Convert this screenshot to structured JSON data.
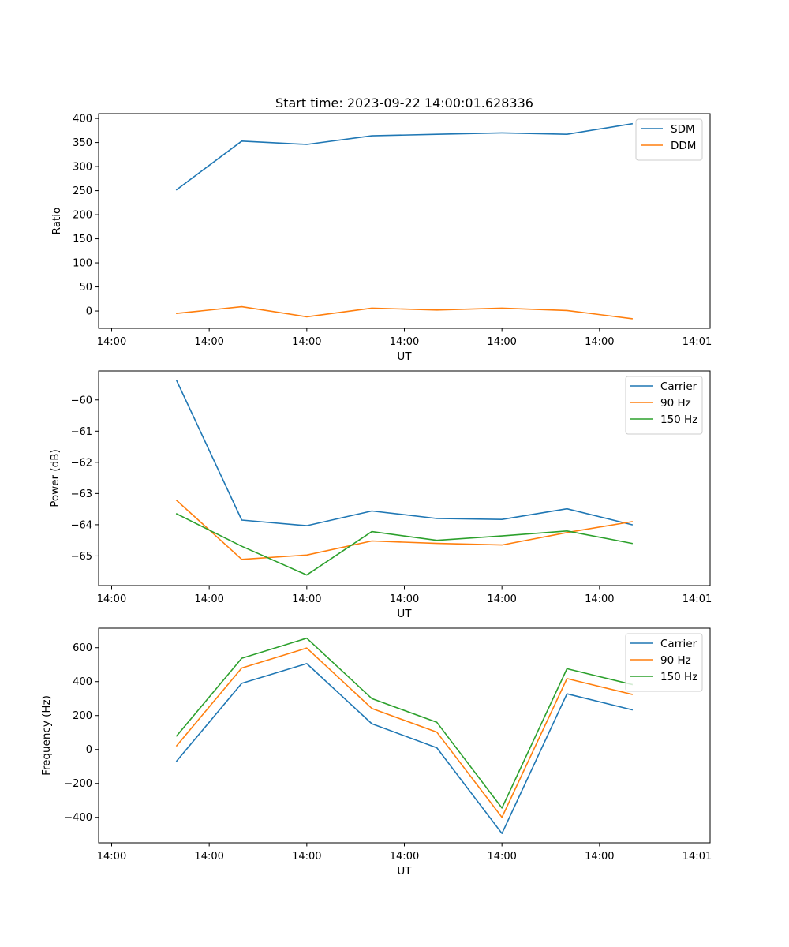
{
  "chart_data": [
    {
      "type": "line",
      "title": "Start time: 2023-09-22 14:00:01.628336",
      "xlabel": "UT",
      "ylabel": "Ratio",
      "x": [
        0.5,
        1.0,
        1.5,
        2.0,
        2.5,
        3.0,
        3.5,
        4.0
      ],
      "xlim": [
        -0.1,
        4.6
      ],
      "xticks": [
        0,
        0.75,
        1.5,
        2.25,
        3.0,
        3.75,
        4.5
      ],
      "xtick_labels": [
        "14:00",
        "14:00",
        "14:00",
        "14:00",
        "14:00",
        "14:00",
        "14:01"
      ],
      "ylim": [
        -36,
        410
      ],
      "yticks": [
        0,
        50,
        100,
        150,
        200,
        250,
        300,
        350,
        400
      ],
      "ytick_labels": [
        "0",
        "50",
        "100",
        "150",
        "200",
        "250",
        "300",
        "350",
        "400"
      ],
      "legend": "top-right",
      "series": [
        {
          "name": "SDM",
          "color": "#1f77b4",
          "values": [
            252,
            353,
            346,
            364,
            367,
            370,
            367,
            389
          ]
        },
        {
          "name": "DDM",
          "color": "#ff7f0e",
          "values": [
            -5,
            9,
            -12,
            6,
            2,
            6,
            1,
            -16
          ]
        }
      ]
    },
    {
      "type": "line",
      "title": "",
      "xlabel": "UT",
      "ylabel": "Power (dB)",
      "x": [
        0.5,
        1.0,
        1.5,
        2.0,
        2.5,
        3.0,
        3.5,
        4.0
      ],
      "xlim": [
        -0.1,
        4.6
      ],
      "xticks": [
        0,
        0.75,
        1.5,
        2.25,
        3.0,
        3.75,
        4.5
      ],
      "xtick_labels": [
        "14:00",
        "14:00",
        "14:00",
        "14:00",
        "14:00",
        "14:00",
        "14:01"
      ],
      "ylim": [
        -65.95,
        -59.07
      ],
      "yticks": [
        -65,
        -64,
        -63,
        -62,
        -61,
        -60
      ],
      "ytick_labels": [
        "−65",
        "−64",
        "−63",
        "−62",
        "−61",
        "−60"
      ],
      "legend": "top-right",
      "series": [
        {
          "name": "Carrier",
          "color": "#1f77b4",
          "values": [
            -59.38,
            -63.85,
            -64.03,
            -63.56,
            -63.8,
            -63.83,
            -63.49,
            -64.0
          ]
        },
        {
          "name": "90 Hz",
          "color": "#ff7f0e",
          "values": [
            -63.22,
            -65.11,
            -64.97,
            -64.52,
            -64.6,
            -64.65,
            -64.25,
            -63.9
          ]
        },
        {
          "name": "150 Hz",
          "color": "#2ca02c",
          "values": [
            -63.65,
            -64.69,
            -65.61,
            -64.22,
            -64.5,
            -64.36,
            -64.2,
            -64.6
          ]
        }
      ]
    },
    {
      "type": "line",
      "title": "",
      "xlabel": "UT",
      "ylabel": "Frequency (Hz)",
      "x": [
        0.5,
        1.0,
        1.5,
        2.0,
        2.5,
        3.0,
        3.5,
        4.0
      ],
      "xlim": [
        -0.1,
        4.6
      ],
      "xticks": [
        0,
        0.75,
        1.5,
        2.25,
        3.0,
        3.75,
        4.5
      ],
      "xtick_labels": [
        "14:00",
        "14:00",
        "14:00",
        "14:00",
        "14:00",
        "14:00",
        "14:01"
      ],
      "ylim": [
        -550,
        715
      ],
      "yticks": [
        -400,
        -200,
        0,
        200,
        400,
        600
      ],
      "ytick_labels": [
        "−400",
        "−200",
        "0",
        "200",
        "400",
        "600"
      ],
      "legend": "top-right",
      "series": [
        {
          "name": "Carrier",
          "color": "#1f77b4",
          "values": [
            -68,
            390,
            506,
            152,
            10,
            -495,
            328,
            234
          ]
        },
        {
          "name": "90 Hz",
          "color": "#ff7f0e",
          "values": [
            22,
            480,
            598,
            242,
            102,
            -400,
            418,
            325
          ]
        },
        {
          "name": "150 Hz",
          "color": "#2ca02c",
          "values": [
            80,
            538,
            656,
            300,
            160,
            -345,
            476,
            383
          ]
        }
      ]
    }
  ]
}
